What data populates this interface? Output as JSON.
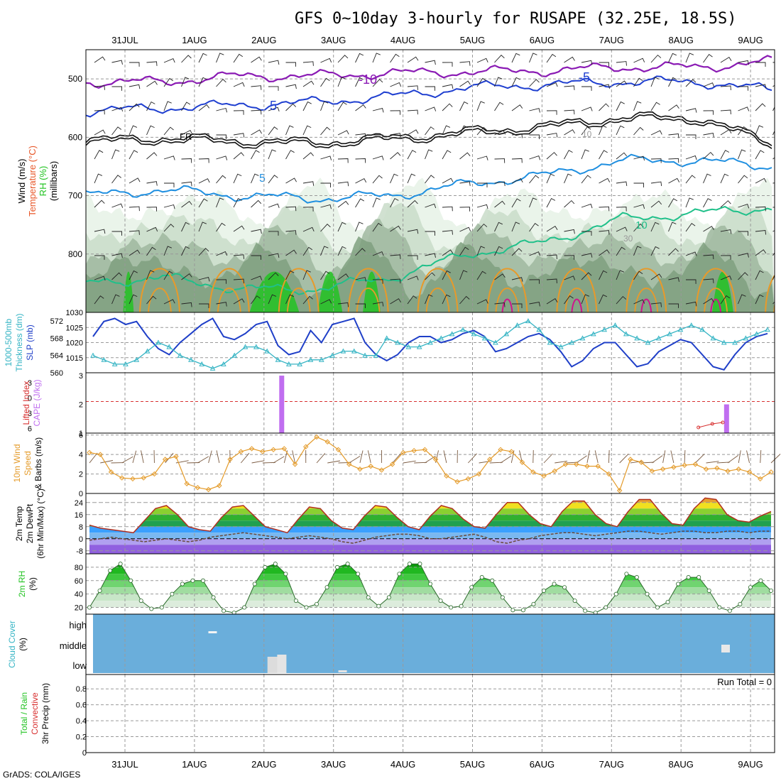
{
  "title": "GFS 0~10day 3-hourly for RUSAPE (32.25E, 18.5S)",
  "footer": "GrADS: COLA/IGES",
  "dates": [
    "31JUL",
    "1AUG",
    "2AUG",
    "3AUG",
    "4AUG",
    "5AUG",
    "6AUG",
    "7AUG",
    "8AUG",
    "9AUG"
  ],
  "colors": {
    "purple": "#8a1ab4",
    "blue_dark": "#1f3fd0",
    "blue_light": "#1f8fe0",
    "teal": "#20c08a",
    "orange": "#e89a2a",
    "magenta": "#d0158c",
    "green": "#22c322",
    "lightblue_cloud": "#6aaedb",
    "thickness": "#35b4c4",
    "slp": "#1f3fc8",
    "cape": "#c06ef0",
    "lifted": "#d83030",
    "wind": "#e49b2a"
  },
  "panels": [
    {
      "label_lines": [
        {
          "text": "Wind (m/s)",
          "color": "#000000"
        },
        {
          "text": "Temperature (°C)",
          "color": "#e8582a"
        },
        {
          "text": "RH (%)",
          "color": "#22c322"
        },
        {
          "text": "(millibars)",
          "color": "#000000"
        }
      ]
    },
    {
      "label_lines": [
        {
          "text": "1000-500mb",
          "color": "#35b4c4"
        },
        {
          "text": "Thickness (dm)",
          "color": "#35b4c4"
        },
        {
          "text": "SLP (mb)",
          "color": "#1f3fc8"
        }
      ]
    },
    {
      "label_lines": [
        {
          "text": "Lifted Index",
          "color": "#d83030"
        },
        {
          "text": "CAPE (J/kg)",
          "color": "#c06ef0"
        }
      ]
    },
    {
      "label_lines": [
        {
          "text": "10m Wind",
          "color": "#e49b2a"
        },
        {
          "text": "Speed",
          "color": "#e49b2a"
        },
        {
          "text": "& Barbs (m/s)",
          "color": "#000000"
        }
      ]
    },
    {
      "label_lines": [
        {
          "text": "2m Temp",
          "color": "#000000"
        },
        {
          "text": "2m DewPt",
          "color": "#000000"
        },
        {
          "text": "(6hr Min/Max) (°C)",
          "color": "#000000"
        }
      ]
    },
    {
      "label_lines": [
        {
          "text": "2m RH",
          "color": "#22c322"
        },
        {
          "text": "(%)",
          "color": "#000000"
        }
      ]
    },
    {
      "label_lines": [
        {
          "text": "Cloud Cover",
          "color": "#35b4c4"
        },
        {
          "text": "(%)",
          "color": "#000000"
        }
      ]
    },
    {
      "label_lines": [
        {
          "text": "Total / Rain",
          "color": "#22c322"
        },
        {
          "text": "Convective",
          "color": "#d83030"
        },
        {
          "text": "3hr Precip (mm)",
          "color": "#000000"
        }
      ]
    }
  ],
  "chart_data": [
    {
      "type": "contour",
      "panel": "upper-air",
      "y_axis": {
        "label": "(millibars)",
        "ticks": [
          500,
          600,
          700,
          800
        ],
        "range_mb": [
          450,
          900
        ]
      },
      "x": [
        "31JUL",
        "1AUG",
        "2AUG",
        "3AUG",
        "4AUG",
        "5AUG",
        "6AUG",
        "7AUG",
        "8AUG",
        "9AUG"
      ],
      "contour_labels": [
        {
          "text": "-10",
          "color": "#8a1ab4"
        },
        {
          "text": "-5",
          "color": "#1f3fd0"
        },
        {
          "text": "5",
          "color": "#1f3fd0"
        },
        {
          "text": "FR",
          "color": "#000000"
        },
        {
          "text": "5",
          "color": "#1f8fe0"
        },
        {
          "text": "10",
          "color": "#20c08a"
        },
        {
          "text": "30",
          "color": "#9a9a9a"
        },
        {
          "text": "10",
          "color": "#9a9a9a"
        }
      ],
      "isotherm_levels_mb": {
        "minus10": [
          505,
          505,
          495,
          495,
          490,
          488,
          486,
          480,
          480,
          470
        ],
        "minus5": [
          555,
          550,
          545,
          540,
          530,
          515,
          510,
          505,
          505,
          520
        ],
        "freezing": [
          605,
          600,
          605,
          608,
          600,
          590,
          580,
          565,
          565,
          610
        ],
        "plus5": [
          700,
          690,
          700,
          705,
          700,
          680,
          665,
          640,
          640,
          650
        ],
        "plus10": [
          850,
          840,
          860,
          860,
          840,
          800,
          780,
          740,
          730,
          720
        ]
      }
    },
    {
      "type": "line",
      "panel": "thickness-slp",
      "series": [
        {
          "name": "SLP (mb)",
          "color": "#1f3fc8",
          "values": [
            1022,
            1027,
            1028,
            1026,
            1027,
            1022,
            1018,
            1016,
            1020,
            1023,
            1026,
            1028,
            1022,
            1021,
            1023,
            1026,
            1027,
            1019,
            1016,
            1017,
            1024,
            1020,
            1026,
            1027,
            1028,
            1020,
            1016,
            1014,
            1016,
            1020,
            1022,
            1022,
            1020,
            1021,
            1023,
            1024,
            1022,
            1017,
            1018,
            1020,
            1022,
            1023,
            1021,
            1017,
            1012,
            1014,
            1018,
            1020,
            1020,
            1016,
            1012,
            1013,
            1017,
            1019,
            1021,
            1020,
            1016,
            1012,
            1011,
            1016,
            1020,
            1022,
            1023
          ]
        },
        {
          "name": "1000-500mb Thickness (dm)",
          "color": "#35b4c4",
          "values": [
            564,
            563,
            562,
            562,
            563,
            565,
            567,
            566,
            564,
            563,
            562,
            561,
            562,
            564,
            566,
            566,
            565,
            563,
            562,
            562,
            563,
            563,
            564,
            565,
            565,
            564,
            564,
            568,
            567,
            566,
            566,
            567,
            568,
            569,
            570,
            569,
            568,
            567,
            569,
            571,
            572,
            570,
            567,
            566,
            567,
            568,
            569,
            570,
            571,
            569,
            568,
            567,
            568,
            569,
            570,
            571,
            570,
            568,
            567,
            567,
            568,
            569,
            570
          ]
        }
      ],
      "y_left_ticks": [
        560,
        564,
        568,
        572
      ],
      "y_right_ticks": [
        1015,
        1020,
        1025,
        1030
      ]
    },
    {
      "type": "bar",
      "panel": "cape-lifted-index",
      "series": [
        {
          "name": "CAPE (J/kg)",
          "color": "#c06ef0",
          "bars": [
            {
              "x_day": 2.25,
              "value": 3.0
            },
            {
              "x_day": 8.65,
              "value": 2.0
            }
          ]
        },
        {
          "name": "Lifted Index",
          "color": "#d83030",
          "points": [
            {
              "x_day": 8.25,
              "value": 5
            },
            {
              "x_day": 8.45,
              "value": 4.5
            },
            {
              "x_day": 8.6,
              "value": 4.3
            }
          ]
        }
      ],
      "y_left_ticks": [
        -3,
        0,
        3,
        6
      ],
      "y_right_ticks": [
        1,
        2,
        3
      ],
      "reference_line": {
        "value": 2.1,
        "color": "#d83030",
        "style": "dashed"
      }
    },
    {
      "type": "line",
      "panel": "10m-wind",
      "series": [
        {
          "name": "10m Wind Speed",
          "color": "#e49b2a",
          "values": [
            4.2,
            4.0,
            2.2,
            1.6,
            1.5,
            1.6,
            2.0,
            3.5,
            3.8,
            1.0,
            0.6,
            0.4,
            0.8,
            3.5,
            4.3,
            4.6,
            4.3,
            4.5,
            4.6,
            3.0,
            4.8,
            5.8,
            5.3,
            4.5,
            3.0,
            2.5,
            2.8,
            2.4,
            3.0,
            4.2,
            4.4,
            4.5,
            3.5,
            1.8,
            1.2,
            1.5,
            2.0,
            3.5,
            4.5,
            4.3,
            3.2,
            2.2,
            1.8,
            2.3,
            3.0,
            3.0,
            2.8,
            2.8,
            2.0,
            0.3,
            3.5,
            3.2,
            2.3,
            2.5,
            2.7,
            2.9,
            3.0,
            2.5,
            2.6,
            2.3,
            2.5,
            2.2,
            1.5,
            2.2
          ]
        }
      ],
      "y_ticks": [
        0,
        2,
        4,
        6
      ]
    },
    {
      "type": "area",
      "panel": "2m-temp-dewpt",
      "series": [
        {
          "name": "2m Temp",
          "color": "#b03020",
          "values": [
            9,
            7,
            6,
            5,
            4,
            12,
            20,
            22,
            16,
            8,
            6,
            5,
            14,
            21,
            22,
            15,
            8,
            6,
            4,
            13,
            21,
            20,
            12,
            7,
            6,
            15,
            22,
            21,
            14,
            8,
            6,
            15,
            22,
            20,
            13,
            8,
            7,
            16,
            24,
            24,
            16,
            10,
            8,
            18,
            25,
            25,
            16,
            10,
            8,
            18,
            26,
            26,
            17,
            10,
            9,
            20,
            27,
            26,
            16,
            12,
            11,
            15,
            18
          ]
        },
        {
          "name": "2m DewPt",
          "color": "#6a4a3a",
          "values": [
            -1,
            0,
            1,
            0,
            -1,
            -2,
            -1,
            0,
            -1,
            -2,
            -1,
            1,
            2,
            3,
            4,
            3,
            2,
            1,
            0,
            1,
            2,
            1,
            0,
            -2,
            -3,
            -1,
            1,
            2,
            3,
            3,
            2,
            0,
            0,
            1,
            2,
            3,
            1,
            -2,
            -3,
            -1,
            0,
            2,
            3,
            4,
            4,
            3,
            2,
            3,
            4,
            5,
            5,
            4,
            3,
            4,
            5,
            5,
            4,
            4,
            5,
            5,
            4,
            5,
            5
          ]
        }
      ],
      "y_ticks": [
        -8,
        0,
        8,
        16,
        24
      ]
    },
    {
      "type": "area",
      "panel": "2m-rh",
      "series": [
        {
          "name": "2m RH (%)",
          "color": "#22a022",
          "values": [
            20,
            45,
            75,
            85,
            60,
            30,
            18,
            20,
            40,
            55,
            60,
            60,
            35,
            15,
            12,
            20,
            55,
            80,
            85,
            70,
            30,
            20,
            25,
            50,
            80,
            85,
            70,
            35,
            22,
            35,
            70,
            85,
            85,
            55,
            30,
            20,
            22,
            50,
            65,
            60,
            35,
            16,
            16,
            25,
            45,
            55,
            50,
            30,
            15,
            12,
            20,
            40,
            70,
            65,
            40,
            20,
            28,
            55,
            65,
            65,
            45,
            20,
            15,
            25,
            50,
            60,
            45
          ]
        }
      ],
      "y_ticks": [
        20,
        40,
        60,
        80
      ]
    },
    {
      "type": "bar",
      "panel": "cloud-cover",
      "y_ticks": [
        "low",
        "middle",
        "high"
      ],
      "series": [
        {
          "name": "high cloud",
          "bars": [
            {
              "x_day": 1.2,
              "value": 5
            }
          ]
        },
        {
          "name": "low cloud",
          "bars": [
            {
              "x_day": 2.1,
              "value": 30
            },
            {
              "x_day": 2.25,
              "value": 35
            },
            {
              "x_day": 3.1,
              "value": 5
            }
          ]
        },
        {
          "name": "middle cloud",
          "bars": [
            {
              "x_day": 8.63,
              "value": 25
            }
          ]
        }
      ]
    },
    {
      "type": "bar",
      "panel": "precipitation",
      "run_total": "Run Total = 0",
      "y_ticks": [
        0,
        0.2,
        0.4,
        0.6,
        0.8
      ],
      "series": []
    }
  ]
}
